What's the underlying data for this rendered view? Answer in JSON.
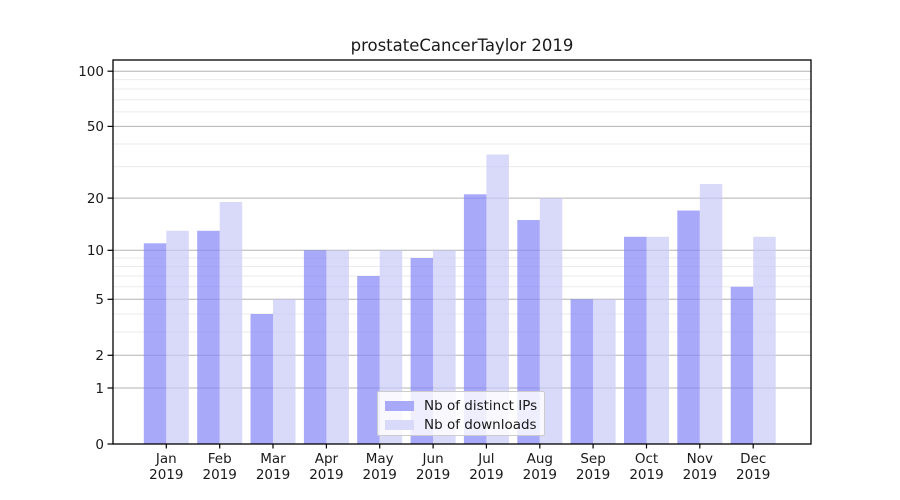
{
  "title": "prostateCancerTaylor 2019",
  "chart_data": {
    "type": "bar",
    "title": "prostateCancerTaylor 2019",
    "categories": [
      "Jan 2019",
      "Feb 2019",
      "Mar 2019",
      "Apr 2019",
      "May 2019",
      "Jun 2019",
      "Jul 2019",
      "Aug 2019",
      "Sep 2019",
      "Oct 2019",
      "Nov 2019",
      "Dec 2019"
    ],
    "series": [
      {
        "name": "Nb of distinct IPs",
        "color": "#a9a9fa",
        "fill": "#8484f8",
        "fill_opacity": 0.7,
        "values": [
          11,
          13,
          4,
          10,
          7,
          9,
          21,
          15,
          5,
          12,
          17,
          6
        ]
      },
      {
        "name": "Nb of downloads",
        "color": "#d9d9fa",
        "fill": "#c9c9f8",
        "fill_opacity": 0.7,
        "values": [
          13,
          19,
          5,
          10,
          10,
          10,
          35,
          20,
          5,
          12,
          24,
          12
        ]
      }
    ],
    "xlabel": "",
    "ylabel": "",
    "yscale": "log1p",
    "ylim": [
      0,
      115
    ],
    "yticks": [
      0,
      1,
      2,
      5,
      10,
      20,
      50,
      100
    ],
    "yticks_minor": [
      3,
      4,
      6,
      7,
      8,
      9,
      30,
      40,
      60,
      70,
      80,
      90
    ],
    "grid": true,
    "legend_position": "lower center"
  },
  "colors": {
    "bar_ips": "#a9a9fa",
    "bar_downloads": "#d9d9fa",
    "gridline_major": "#b3b3b3",
    "gridline_minor": "#ebebeb",
    "spine": "#000000",
    "text": "#1a1a1a",
    "legend_border": "#cccccc",
    "legend_bg": "rgba(255,255,255,0.8)"
  }
}
